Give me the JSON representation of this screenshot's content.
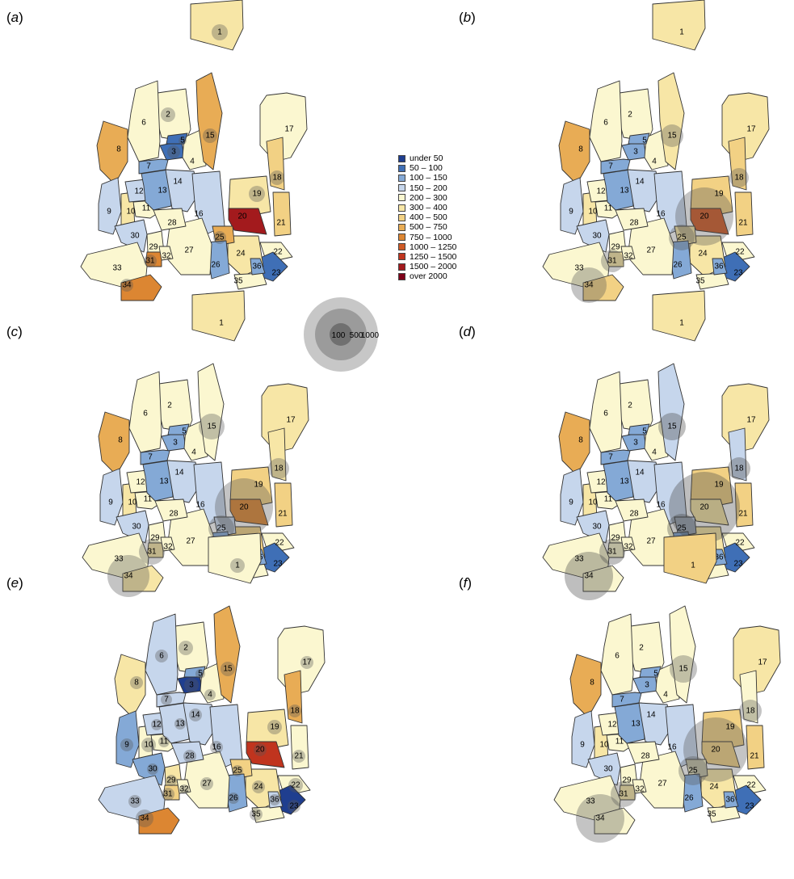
{
  "panels": [
    {
      "letter": "a"
    },
    {
      "letter": "b"
    },
    {
      "letter": "c"
    },
    {
      "letter": "d"
    },
    {
      "letter": "e"
    },
    {
      "letter": "f"
    }
  ],
  "legend": {
    "items": [
      {
        "label": "under 50",
        "color": "#1f3e8f"
      },
      {
        "label": "50 – 100",
        "color": "#3f6fb6"
      },
      {
        "label": "100 – 150",
        "color": "#84a9d6"
      },
      {
        "label": "150 – 200",
        "color": "#c6d6ec"
      },
      {
        "label": "200 – 300",
        "color": "#fbf7d0"
      },
      {
        "label": "300 – 400",
        "color": "#f7e6a6"
      },
      {
        "label": "400 – 500",
        "color": "#f2d184"
      },
      {
        "label": "500 – 750",
        "color": "#e8ac55"
      },
      {
        "label": "750 – 1000",
        "color": "#dc8632"
      },
      {
        "label": "1000 – 1250",
        "color": "#cf5a25"
      },
      {
        "label": "1250 – 1500",
        "color": "#c0341e"
      },
      {
        "label": "1500 – 2000",
        "color": "#a31a1d"
      },
      {
        "label": "over 2000",
        "color": "#7e0019"
      }
    ],
    "circle_scale": [
      {
        "label": "100"
      },
      {
        "label": "500"
      },
      {
        "label": "1000"
      }
    ]
  },
  "districts": [
    "1",
    "2",
    "3",
    "4",
    "5",
    "6",
    "7",
    "8",
    "9",
    "10",
    "11",
    "12",
    "13",
    "14",
    "15",
    "16",
    "17",
    "18",
    "19",
    "20",
    "21",
    "22",
    "23",
    "24",
    "25",
    "26",
    "27",
    "28",
    "29",
    "30",
    "31",
    "32",
    "33",
    "34",
    "35",
    "36"
  ]
}
